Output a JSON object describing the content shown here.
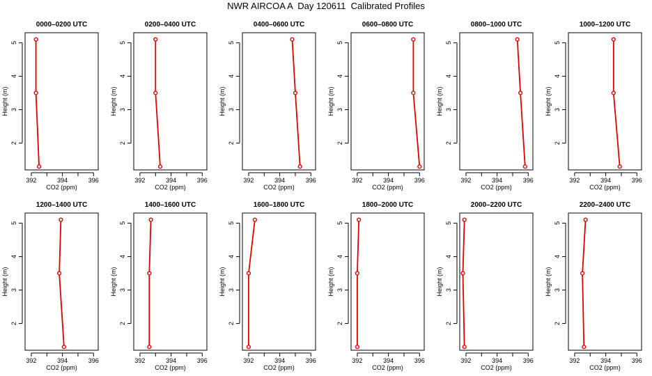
{
  "page_title": "NWR AIRCOA A  Day 120611  Calibrated Profiles",
  "colors": {
    "line": "#dd0000",
    "point": "#dd0000",
    "axis": "#000000"
  },
  "chart_data": [
    {
      "type": "line",
      "title": "0000–0200 UTC",
      "xlabel": "CO2 (ppm)",
      "ylabel": "Height (m)",
      "xlim": [
        391.6,
        396.3
      ],
      "ylim": [
        1.2,
        5.3
      ],
      "xticks": [
        "392",
        "394",
        "396"
      ],
      "yticks": [
        "2",
        "3",
        "4",
        "5"
      ],
      "grid": false,
      "x": [
        392.3,
        392.3,
        392.5
      ],
      "y": [
        5.1,
        3.5,
        1.3
      ]
    },
    {
      "type": "line",
      "title": "0200–0400 UTC",
      "xlabel": "CO2 (ppm)",
      "ylabel": "Height (m)",
      "xlim": [
        391.6,
        396.3
      ],
      "ylim": [
        1.2,
        5.3
      ],
      "xticks": [
        "392",
        "394",
        "396"
      ],
      "yticks": [
        "2",
        "3",
        "4",
        "5"
      ],
      "grid": false,
      "x": [
        393.0,
        393.0,
        393.3
      ],
      "y": [
        5.1,
        3.5,
        1.3
      ]
    },
    {
      "type": "line",
      "title": "0400–0600 UTC",
      "xlabel": "CO2 (ppm)",
      "ylabel": "Height (m)",
      "xlim": [
        391.6,
        396.3
      ],
      "ylim": [
        1.2,
        5.3
      ],
      "xticks": [
        "392",
        "394",
        "396"
      ],
      "yticks": [
        "2",
        "3",
        "4",
        "5"
      ],
      "grid": false,
      "x": [
        394.8,
        395.0,
        395.3
      ],
      "y": [
        5.1,
        3.5,
        1.3
      ]
    },
    {
      "type": "line",
      "title": "0600–0800 UTC",
      "xlabel": "CO2 (ppm)",
      "ylabel": "Height (m)",
      "xlim": [
        391.6,
        396.3
      ],
      "ylim": [
        1.2,
        5.3
      ],
      "xticks": [
        "392",
        "394",
        "396"
      ],
      "yticks": [
        "2",
        "3",
        "4",
        "5"
      ],
      "grid": false,
      "x": [
        395.6,
        395.6,
        396.0
      ],
      "y": [
        5.1,
        3.5,
        1.3
      ]
    },
    {
      "type": "line",
      "title": "0800–1000 UTC",
      "xlabel": "CO2 (ppm)",
      "ylabel": "Height (m)",
      "xlim": [
        391.6,
        396.3
      ],
      "ylim": [
        1.2,
        5.3
      ],
      "xticks": [
        "392",
        "394",
        "396"
      ],
      "yticks": [
        "2",
        "3",
        "4",
        "5"
      ],
      "grid": false,
      "x": [
        395.3,
        395.5,
        395.8
      ],
      "y": [
        5.1,
        3.5,
        1.3
      ]
    },
    {
      "type": "line",
      "title": "1000–1200 UTC",
      "xlabel": "CO2 (ppm)",
      "ylabel": "Height (m)",
      "xlim": [
        391.6,
        396.3
      ],
      "ylim": [
        1.2,
        5.3
      ],
      "xticks": [
        "392",
        "394",
        "396"
      ],
      "yticks": [
        "2",
        "3",
        "4",
        "5"
      ],
      "grid": false,
      "x": [
        394.5,
        394.5,
        394.9
      ],
      "y": [
        5.1,
        3.5,
        1.3
      ]
    },
    {
      "type": "line",
      "title": "1200–1400 UTC",
      "xlabel": "CO2 (ppm)",
      "ylabel": "Height (m)",
      "xlim": [
        391.6,
        396.3
      ],
      "ylim": [
        1.2,
        5.3
      ],
      "xticks": [
        "392",
        "394",
        "396"
      ],
      "yticks": [
        "2",
        "3",
        "4",
        "5"
      ],
      "grid": false,
      "x": [
        393.9,
        393.8,
        394.1
      ],
      "y": [
        5.1,
        3.5,
        1.3
      ]
    },
    {
      "type": "line",
      "title": "1400–1600 UTC",
      "xlabel": "CO2 (ppm)",
      "ylabel": "Height (m)",
      "xlim": [
        391.6,
        396.3
      ],
      "ylim": [
        1.2,
        5.3
      ],
      "xticks": [
        "392",
        "394",
        "396"
      ],
      "yticks": [
        "2",
        "3",
        "4",
        "5"
      ],
      "grid": false,
      "x": [
        392.7,
        392.6,
        392.6
      ],
      "y": [
        5.1,
        3.5,
        1.3
      ]
    },
    {
      "type": "line",
      "title": "1600–1800 UTC",
      "xlabel": "CO2 (ppm)",
      "ylabel": "Height (m)",
      "xlim": [
        391.6,
        396.3
      ],
      "ylim": [
        1.2,
        5.3
      ],
      "xticks": [
        "392",
        "394",
        "396"
      ],
      "yticks": [
        "2",
        "3",
        "4",
        "5"
      ],
      "grid": false,
      "x": [
        392.4,
        392.0,
        392.0
      ],
      "y": [
        5.1,
        3.5,
        1.3
      ]
    },
    {
      "type": "line",
      "title": "1800–2000 UTC",
      "xlabel": "CO2 (ppm)",
      "ylabel": "Height (m)",
      "xlim": [
        391.6,
        396.3
      ],
      "ylim": [
        1.2,
        5.3
      ],
      "xticks": [
        "392",
        "394",
        "396"
      ],
      "yticks": [
        "2",
        "3",
        "4",
        "5"
      ],
      "grid": false,
      "x": [
        392.1,
        392.0,
        392.0
      ],
      "y": [
        5.1,
        3.5,
        1.3
      ]
    },
    {
      "type": "line",
      "title": "2000–2200 UTC",
      "xlabel": "CO2 (ppm)",
      "ylabel": "Height (m)",
      "xlim": [
        391.6,
        396.3
      ],
      "ylim": [
        1.2,
        5.3
      ],
      "xticks": [
        "392",
        "394",
        "396"
      ],
      "yticks": [
        "2",
        "3",
        "4",
        "5"
      ],
      "grid": false,
      "x": [
        391.9,
        391.8,
        391.9
      ],
      "y": [
        5.1,
        3.5,
        1.3
      ]
    },
    {
      "type": "line",
      "title": "2200–2400 UTC",
      "xlabel": "CO2 (ppm)",
      "ylabel": "Height (m)",
      "xlim": [
        391.6,
        396.3
      ],
      "ylim": [
        1.2,
        5.3
      ],
      "xticks": [
        "392",
        "394",
        "396"
      ],
      "yticks": [
        "2",
        "3",
        "4",
        "5"
      ],
      "grid": false,
      "x": [
        392.7,
        392.5,
        392.6
      ],
      "y": [
        5.1,
        3.5,
        1.3
      ]
    }
  ]
}
